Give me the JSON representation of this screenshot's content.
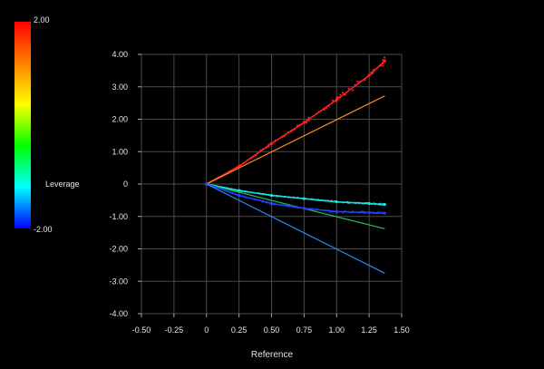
{
  "chart_data": {
    "type": "scatter",
    "title": "",
    "xlabel": "Reference",
    "ylabel": "",
    "xlim": [
      -0.5,
      1.5
    ],
    "ylim": [
      -4.0,
      4.0
    ],
    "x_ticks": [
      "-0.50",
      "-0.25",
      "0",
      "0.25",
      "0.50",
      "0.75",
      "1.00",
      "1.25",
      "1.50"
    ],
    "y_ticks": [
      "4.00",
      "3.00",
      "2.00",
      "1.00",
      "0",
      "-1.00",
      "-2.00",
      "-3.00",
      "-4.00"
    ],
    "grid": true,
    "colorbar": {
      "label": "Leverage",
      "max_label": "2.00",
      "min_label": "-2.00",
      "placement": "left",
      "colors": [
        "#ff0000",
        "#ff8000",
        "#ffff00",
        "#00ff00",
        "#00ffff",
        "#0000ff"
      ]
    },
    "series": [
      {
        "color": "#ff2020",
        "style": "points",
        "x": [
          0.0,
          0.25,
          0.5,
          0.75,
          1.0,
          1.25,
          1.37
        ],
        "y": [
          0.0,
          0.55,
          1.25,
          1.9,
          2.6,
          3.35,
          3.8
        ]
      },
      {
        "color": "#ff9020",
        "style": "line",
        "x": [
          0.0,
          1.37
        ],
        "y": [
          0.0,
          2.72
        ]
      },
      {
        "color": "#20e0e0",
        "style": "points",
        "x": [
          0.0,
          0.25,
          0.5,
          0.75,
          1.0,
          1.25,
          1.37
        ],
        "y": [
          0.0,
          -0.2,
          -0.35,
          -0.45,
          -0.55,
          -0.6,
          -0.63
        ]
      },
      {
        "color": "#20c060",
        "style": "line",
        "x": [
          0.0,
          1.37
        ],
        "y": [
          0.0,
          -1.38
        ]
      },
      {
        "color": "#2040ff",
        "style": "points",
        "x": [
          0.0,
          0.25,
          0.5,
          0.75,
          1.0,
          1.25,
          1.37
        ],
        "y": [
          0.0,
          -0.35,
          -0.6,
          -0.75,
          -0.85,
          -0.88,
          -0.9
        ]
      },
      {
        "color": "#2a8cff",
        "style": "line",
        "x": [
          0.0,
          1.37
        ],
        "y": [
          0.0,
          -2.75
        ]
      }
    ]
  }
}
